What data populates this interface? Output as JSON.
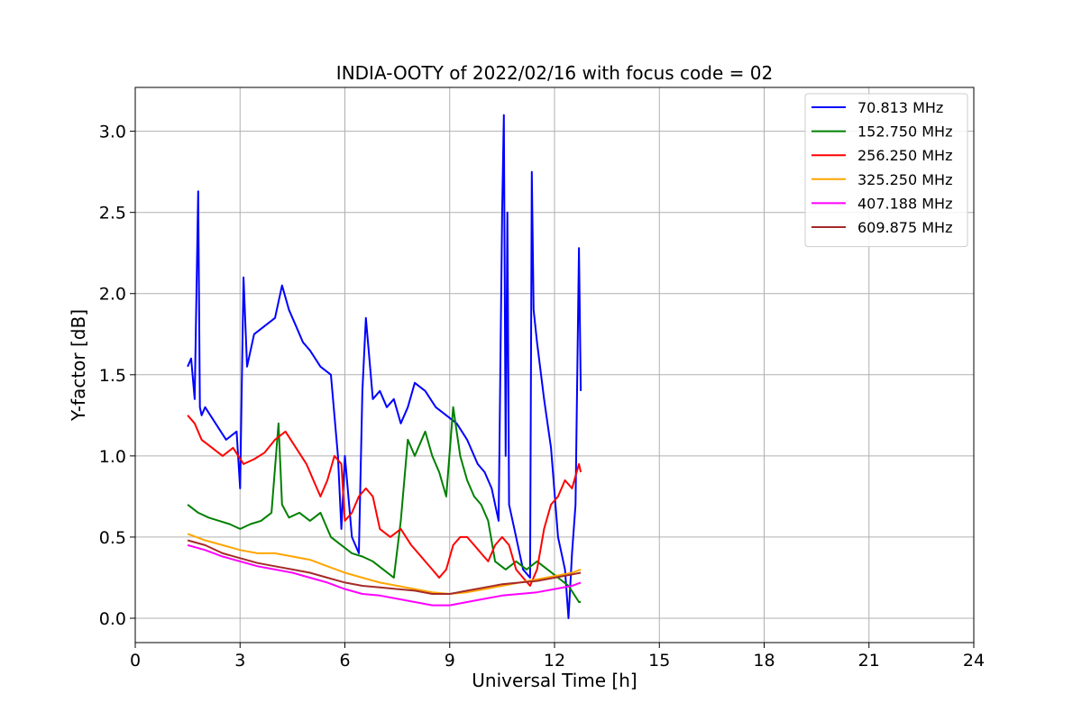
{
  "chart_data": {
    "type": "line",
    "title": "INDIA-OOTY of 2022/02/16 with focus code = 02",
    "xlabel": "Universal Time [h]",
    "ylabel": "Y-factor [dB]",
    "xlim": [
      0,
      24
    ],
    "ylim": [
      -0.15,
      3.27
    ],
    "xticks": [
      0,
      3,
      6,
      9,
      12,
      15,
      18,
      21,
      24
    ],
    "xtick_labels": [
      "0",
      "3",
      "6",
      "9",
      "12",
      "15",
      "18",
      "21",
      "24"
    ],
    "yticks": [
      0.0,
      0.5,
      1.0,
      1.5,
      2.0,
      2.5,
      3.0
    ],
    "ytick_labels": [
      "0.0",
      "0.5",
      "1.0",
      "1.5",
      "2.0",
      "2.5",
      "3.0"
    ],
    "grid": true,
    "legend_position": "top-right",
    "series": [
      {
        "name": " 70.813 MHz",
        "color": "#0000ff",
        "x": [
          1.5,
          1.6,
          1.7,
          1.8,
          1.85,
          1.9,
          2.0,
          2.3,
          2.6,
          2.9,
          3.0,
          3.1,
          3.2,
          3.4,
          3.7,
          4.0,
          4.2,
          4.4,
          4.6,
          4.8,
          5.0,
          5.3,
          5.6,
          5.8,
          5.9,
          6.0,
          6.2,
          6.4,
          6.5,
          6.6,
          6.8,
          7.0,
          7.2,
          7.4,
          7.6,
          7.8,
          8.0,
          8.3,
          8.6,
          8.9,
          9.2,
          9.5,
          9.8,
          10.0,
          10.2,
          10.4,
          10.5,
          10.55,
          10.6,
          10.65,
          10.7,
          10.9,
          11.1,
          11.3,
          11.35,
          11.4,
          11.5,
          11.7,
          11.9,
          12.1,
          12.3,
          12.4,
          12.5,
          12.6,
          12.7,
          12.75
        ],
        "y": [
          1.55,
          1.6,
          1.35,
          2.63,
          1.3,
          1.25,
          1.3,
          1.2,
          1.1,
          1.15,
          0.8,
          2.1,
          1.55,
          1.75,
          1.8,
          1.85,
          2.05,
          1.9,
          1.8,
          1.7,
          1.65,
          1.55,
          1.5,
          1.0,
          0.55,
          1.0,
          0.5,
          0.4,
          1.4,
          1.85,
          1.35,
          1.4,
          1.3,
          1.35,
          1.2,
          1.3,
          1.45,
          1.4,
          1.3,
          1.25,
          1.2,
          1.1,
          0.95,
          0.9,
          0.8,
          0.6,
          2.5,
          3.1,
          1.0,
          2.5,
          0.7,
          0.5,
          0.3,
          0.25,
          2.75,
          1.9,
          1.7,
          1.35,
          1.05,
          0.5,
          0.3,
          0.0,
          0.4,
          0.7,
          2.28,
          1.4
        ]
      },
      {
        "name": "152.750 MHz",
        "color": "#008000",
        "x": [
          1.5,
          1.8,
          2.1,
          2.4,
          2.7,
          3.0,
          3.3,
          3.6,
          3.9,
          4.1,
          4.2,
          4.4,
          4.7,
          5.0,
          5.3,
          5.6,
          5.9,
          6.2,
          6.5,
          6.8,
          7.1,
          7.4,
          7.6,
          7.8,
          8.0,
          8.3,
          8.5,
          8.7,
          8.9,
          9.1,
          9.3,
          9.5,
          9.7,
          9.9,
          10.1,
          10.3,
          10.6,
          10.9,
          11.2,
          11.5,
          11.8,
          12.1,
          12.4,
          12.7,
          12.75
        ],
        "y": [
          0.7,
          0.65,
          0.62,
          0.6,
          0.58,
          0.55,
          0.58,
          0.6,
          0.65,
          1.2,
          0.7,
          0.62,
          0.65,
          0.6,
          0.65,
          0.5,
          0.45,
          0.4,
          0.38,
          0.35,
          0.3,
          0.25,
          0.6,
          1.1,
          1.0,
          1.15,
          1.0,
          0.9,
          0.75,
          1.3,
          1.0,
          0.85,
          0.75,
          0.7,
          0.6,
          0.35,
          0.3,
          0.35,
          0.3,
          0.35,
          0.3,
          0.25,
          0.2,
          0.1,
          0.1
        ]
      },
      {
        "name": "256.250 MHz",
        "color": "#ff0000",
        "x": [
          1.5,
          1.7,
          1.9,
          2.2,
          2.5,
          2.8,
          3.1,
          3.4,
          3.7,
          4.0,
          4.3,
          4.6,
          4.9,
          5.1,
          5.3,
          5.5,
          5.7,
          5.9,
          6.0,
          6.2,
          6.4,
          6.6,
          6.8,
          7.0,
          7.3,
          7.6,
          7.9,
          8.1,
          8.3,
          8.5,
          8.7,
          8.9,
          9.1,
          9.3,
          9.5,
          9.7,
          9.9,
          10.1,
          10.3,
          10.5,
          10.7,
          10.9,
          11.1,
          11.3,
          11.5,
          11.7,
          11.9,
          12.1,
          12.3,
          12.5,
          12.7,
          12.75
        ],
        "y": [
          1.25,
          1.2,
          1.1,
          1.05,
          1.0,
          1.05,
          0.95,
          0.98,
          1.02,
          1.1,
          1.15,
          1.05,
          0.95,
          0.85,
          0.75,
          0.85,
          1.0,
          0.95,
          0.6,
          0.65,
          0.75,
          0.8,
          0.75,
          0.55,
          0.5,
          0.55,
          0.45,
          0.4,
          0.35,
          0.3,
          0.25,
          0.3,
          0.45,
          0.5,
          0.5,
          0.45,
          0.4,
          0.35,
          0.45,
          0.5,
          0.45,
          0.3,
          0.25,
          0.2,
          0.3,
          0.55,
          0.7,
          0.75,
          0.85,
          0.8,
          0.95,
          0.9
        ]
      },
      {
        "name": "325.250 MHz",
        "color": "#ffa500",
        "x": [
          1.5,
          2.0,
          2.5,
          3.0,
          3.5,
          4.0,
          4.5,
          5.0,
          5.5,
          6.0,
          6.5,
          7.0,
          7.5,
          8.0,
          8.5,
          9.0,
          9.5,
          10.0,
          10.5,
          11.0,
          11.5,
          12.0,
          12.5,
          12.75
        ],
        "y": [
          0.52,
          0.48,
          0.45,
          0.42,
          0.4,
          0.4,
          0.38,
          0.36,
          0.32,
          0.28,
          0.25,
          0.22,
          0.2,
          0.18,
          0.16,
          0.15,
          0.16,
          0.18,
          0.2,
          0.22,
          0.24,
          0.26,
          0.28,
          0.3
        ]
      },
      {
        "name": "407.188 MHz",
        "color": "#ff00ff",
        "x": [
          1.5,
          2.0,
          2.5,
          3.0,
          3.5,
          4.0,
          4.5,
          5.0,
          5.5,
          6.0,
          6.5,
          7.0,
          7.5,
          8.0,
          8.5,
          9.0,
          9.5,
          10.0,
          10.5,
          11.0,
          11.5,
          12.0,
          12.5,
          12.75
        ],
        "y": [
          0.45,
          0.42,
          0.38,
          0.35,
          0.32,
          0.3,
          0.28,
          0.25,
          0.22,
          0.18,
          0.15,
          0.14,
          0.12,
          0.1,
          0.08,
          0.08,
          0.1,
          0.12,
          0.14,
          0.15,
          0.16,
          0.18,
          0.2,
          0.22
        ]
      },
      {
        "name": "609.875 MHz",
        "color": "#a52a2a",
        "x": [
          1.5,
          2.0,
          2.5,
          3.0,
          3.5,
          4.0,
          4.5,
          5.0,
          5.5,
          6.0,
          6.5,
          7.0,
          7.5,
          8.0,
          8.5,
          9.0,
          9.5,
          10.0,
          10.5,
          11.0,
          11.5,
          12.0,
          12.5,
          12.75
        ],
        "y": [
          0.48,
          0.45,
          0.4,
          0.37,
          0.34,
          0.32,
          0.3,
          0.28,
          0.25,
          0.22,
          0.2,
          0.19,
          0.18,
          0.17,
          0.15,
          0.15,
          0.17,
          0.19,
          0.21,
          0.22,
          0.23,
          0.25,
          0.27,
          0.28
        ]
      }
    ]
  }
}
